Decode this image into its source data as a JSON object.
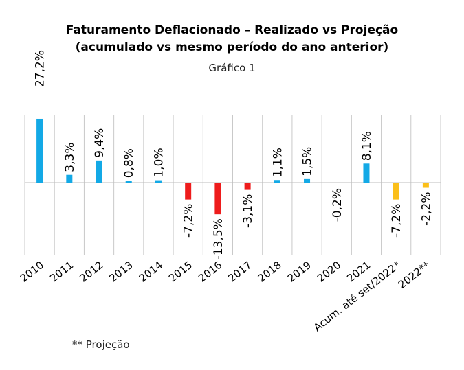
{
  "chart_data": {
    "type": "bar",
    "title": "Faturamento Deflacionado – Realizado vs Projeção",
    "title_line2": "(acumulado vs mesmo período do ano anterior)",
    "subtitle": "Gráfico 1",
    "footnote": "** Projeção",
    "categories": [
      "2010",
      "2011",
      "2012",
      "2013",
      "2014",
      "2015",
      "2016",
      "2017",
      "2018",
      "2019",
      "2020",
      "2021",
      "Acum. até set/2022*",
      "2022**"
    ],
    "values": [
      27.2,
      3.3,
      9.4,
      0.8,
      1.0,
      -7.2,
      -13.5,
      -3.1,
      1.1,
      1.5,
      -0.2,
      8.1,
      -7.2,
      -2.2
    ],
    "data_labels": [
      "27,2%",
      "3,3%",
      "9,4%",
      "0,8%",
      "1,0%",
      "-7,2%",
      "-13,5%",
      "-3,1%",
      "1,1%",
      "1,5%",
      "-0,2%",
      "8,1%",
      "-7,2%",
      "-2,2%"
    ],
    "bar_kinds": [
      "positive",
      "positive",
      "positive",
      "positive",
      "positive",
      "negative",
      "negative",
      "negative",
      "positive",
      "positive",
      "negative",
      "positive",
      "projection",
      "projection"
    ],
    "colors": {
      "positive": "#13a9e6",
      "negative": "#ee1c1c",
      "projection": "#fbbf1a",
      "grid": "#c9c9c9"
    },
    "xlabel": "",
    "ylabel": "",
    "ylim": [
      -28,
      27.2
    ],
    "grid": "vertical separators",
    "legend": "none"
  }
}
